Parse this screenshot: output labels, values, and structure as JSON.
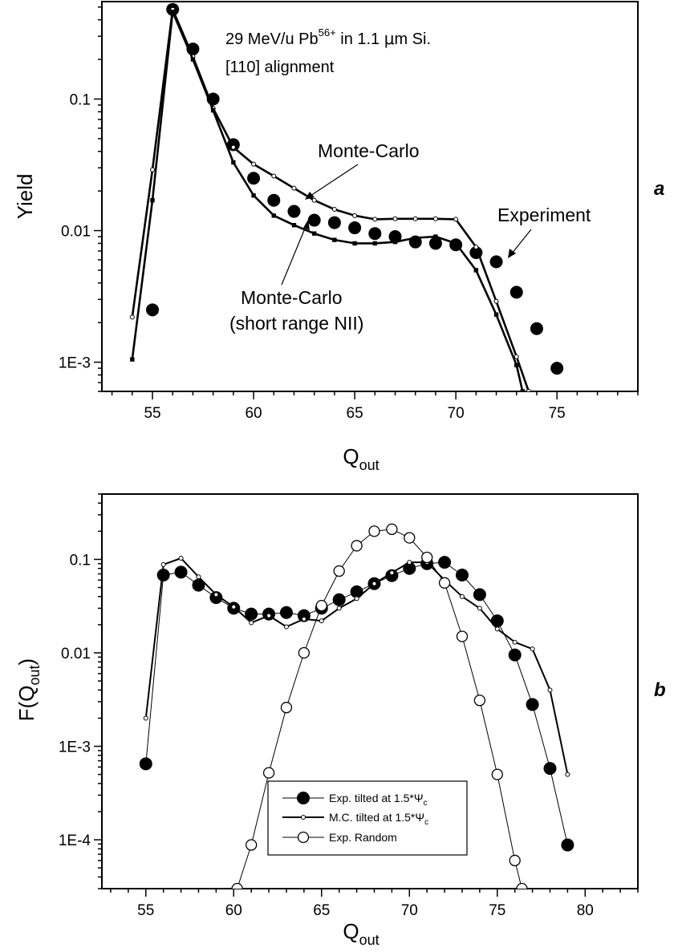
{
  "chart_data": [
    {
      "type": "line",
      "panel_label": "a",
      "annotation_lines": [
        "29 MeV/u Pb",
        "56+",
        " in 1.1 ",
        "μ",
        "m Si.",
        "[110] alignment"
      ],
      "xlabel": "Q",
      "xlabel_sub": "out",
      "ylabel": "Yield",
      "xlim": [
        52.5,
        79
      ],
      "ylim": [
        0.0006,
        0.55
      ],
      "yscale": "log",
      "xticks": [
        55,
        60,
        65,
        70,
        75
      ],
      "xtick_labels": [
        "55",
        "60",
        "65",
        "70",
        "75"
      ],
      "yticks": [
        0.001,
        0.01,
        0.1
      ],
      "ytick_labels": [
        "1E-3",
        "0.01",
        "0.1"
      ],
      "callouts": [
        {
          "text": [
            "Monte-Carlo"
          ],
          "ref": "mc"
        },
        {
          "text": [
            "Monte-Carlo",
            "(short range NII)"
          ],
          "ref": "mc_short"
        },
        {
          "text": [
            "Experiment"
          ],
          "ref": "exp"
        }
      ],
      "series": [
        {
          "id": "exp",
          "marker": "filled-circle",
          "line": false,
          "x": [
            55,
            56,
            57,
            58,
            59,
            60,
            61,
            62,
            63,
            64,
            65,
            66,
            67,
            68,
            69,
            70,
            71,
            72,
            73,
            74,
            75
          ],
          "y": [
            0.0025,
            0.48,
            0.24,
            0.1,
            0.045,
            0.025,
            0.017,
            0.014,
            0.012,
            0.0115,
            0.0105,
            0.0095,
            0.009,
            0.0082,
            0.008,
            0.0078,
            0.0068,
            0.0058,
            0.0034,
            0.0018,
            0.0009
          ]
        },
        {
          "id": "mc",
          "marker": "small-open-circle",
          "line": true,
          "x": [
            54,
            55,
            56,
            57,
            58,
            59,
            60,
            61,
            62,
            63,
            64,
            65,
            66,
            67,
            68,
            69,
            70,
            71,
            72,
            73,
            73.6
          ],
          "y": [
            0.0022,
            0.029,
            0.48,
            0.21,
            0.085,
            0.043,
            0.032,
            0.026,
            0.021,
            0.017,
            0.0145,
            0.013,
            0.0122,
            0.0123,
            0.0123,
            0.0123,
            0.0122,
            0.0075,
            0.0029,
            0.0011,
            0.0006
          ]
        },
        {
          "id": "mc_short",
          "marker": "small-square",
          "line": true,
          "x": [
            54,
            55,
            56,
            57,
            58,
            59,
            60,
            61,
            62,
            63,
            64,
            65,
            66,
            67,
            68,
            69,
            70,
            71,
            72,
            73,
            73.3
          ],
          "y": [
            0.00105,
            0.017,
            0.46,
            0.2,
            0.082,
            0.033,
            0.0185,
            0.013,
            0.011,
            0.0095,
            0.0085,
            0.008,
            0.008,
            0.0082,
            0.0088,
            0.009,
            0.008,
            0.005,
            0.0023,
            0.00095,
            0.0006
          ]
        }
      ]
    },
    {
      "type": "line",
      "panel_label": "b",
      "xlabel": "Q",
      "xlabel_sub": "out",
      "ylabel": "F(Q",
      "ylabel_sub": "out",
      "ylabel_close": ")",
      "xlim": [
        52.5,
        83
      ],
      "ylim": [
        3e-05,
        0.5
      ],
      "yscale": "log",
      "xticks": [
        55,
        60,
        65,
        70,
        75,
        80
      ],
      "xtick_labels": [
        "55",
        "60",
        "65",
        "70",
        "75",
        "80"
      ],
      "yticks": [
        0.0001,
        0.001,
        0.01,
        0.1
      ],
      "ytick_labels": [
        "1E-4",
        "1E-3",
        "0.01",
        "0.1"
      ],
      "legend": [
        {
          "label": "Exp. tilted at 1.5*Ψ",
          "sub": "c",
          "ref": "exp_tilted"
        },
        {
          "label": "M.C. tilted at 1.5*Ψ",
          "sub": "c",
          "ref": "mc_tilted"
        },
        {
          "label": "Exp. Random",
          "sub": "",
          "ref": "exp_random"
        }
      ],
      "series": [
        {
          "id": "exp_tilted",
          "marker": "filled-circle",
          "line": true,
          "line_weight": "thin",
          "x": [
            55,
            56,
            57,
            58,
            59,
            60,
            61,
            62,
            63,
            64,
            65,
            66,
            67,
            68,
            69,
            70,
            71,
            72,
            73,
            74,
            75,
            76,
            77,
            78,
            79
          ],
          "y": [
            0.00065,
            0.068,
            0.073,
            0.053,
            0.039,
            0.03,
            0.026,
            0.026,
            0.027,
            0.025,
            0.03,
            0.037,
            0.045,
            0.055,
            0.067,
            0.08,
            0.09,
            0.093,
            0.068,
            0.042,
            0.022,
            0.0095,
            0.0028,
            0.00058,
            8.8e-05
          ]
        },
        {
          "id": "mc_tilted",
          "marker": "small-open-circle",
          "line": true,
          "line_weight": "thick",
          "x": [
            55,
            56,
            57,
            58,
            59,
            60,
            61,
            62,
            63,
            64,
            65,
            66,
            67,
            68,
            69,
            70,
            71,
            72,
            73,
            74,
            75,
            76,
            77,
            78,
            79
          ],
          "y": [
            0.002,
            0.088,
            0.103,
            0.065,
            0.042,
            0.031,
            0.021,
            0.025,
            0.019,
            0.023,
            0.022,
            0.03,
            0.038,
            0.055,
            0.072,
            0.093,
            0.093,
            0.06,
            0.04,
            0.03,
            0.018,
            0.013,
            0.011,
            0.004,
            0.0005
          ]
        },
        {
          "id": "exp_random",
          "marker": "large-open-circle",
          "line": true,
          "line_weight": "thin",
          "x": [
            60.2,
            61,
            62,
            63,
            64,
            65,
            66,
            67,
            68,
            69,
            70,
            71,
            72,
            73,
            74,
            75,
            76,
            76.4
          ],
          "y": [
            3e-05,
            8.8e-05,
            0.00052,
            0.0026,
            0.01,
            0.032,
            0.075,
            0.14,
            0.2,
            0.21,
            0.17,
            0.105,
            0.056,
            0.015,
            0.0031,
            0.0005,
            6e-05,
            3e-05
          ]
        }
      ]
    }
  ]
}
